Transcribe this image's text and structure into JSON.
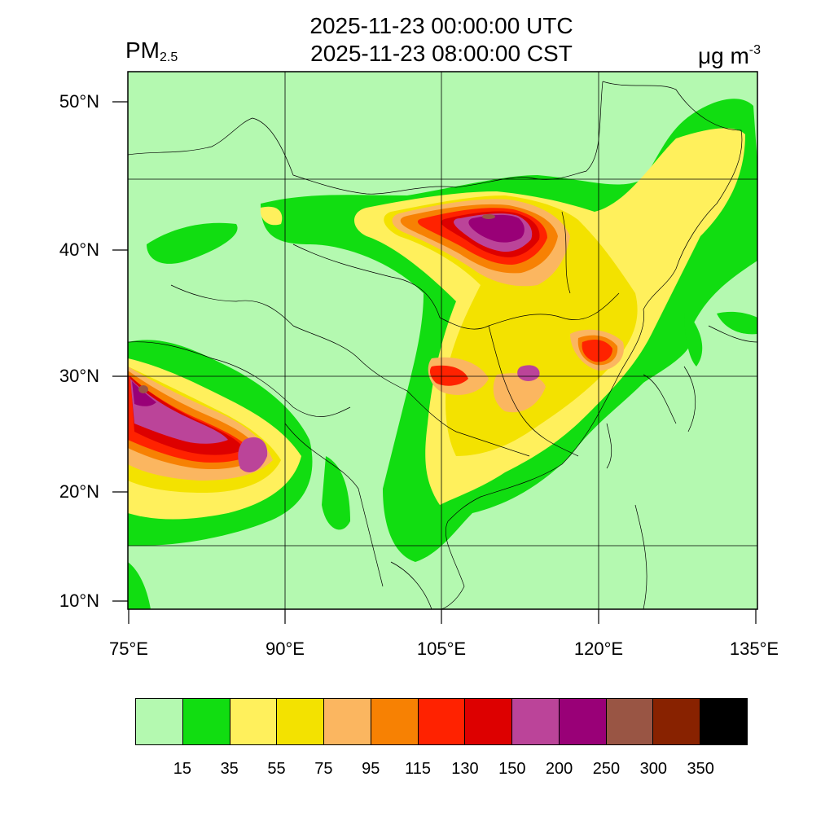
{
  "header": {
    "title_utc": "2025-11-23 00:00:00 UTC",
    "title_cst": "2025-11-23 08:00:00 CST",
    "variable": "PM",
    "variable_subscript": "2.5",
    "units_base": "μg m",
    "units_exponent": "-3"
  },
  "axes": {
    "lat_labels": [
      "50°N",
      "40°N",
      "30°N",
      "20°N",
      "10°N"
    ],
    "lon_labels": [
      "75°E",
      "90°E",
      "105°E",
      "120°E",
      "135°E"
    ],
    "lon_range": [
      75,
      135
    ],
    "lat_range": [
      9,
      52
    ]
  },
  "legend": {
    "labels": [
      "15",
      "35",
      "55",
      "75",
      "95",
      "115",
      "130",
      "150",
      "200",
      "250",
      "300",
      "350"
    ],
    "colors": [
      "#b4f9b0",
      "#11dd11",
      "#fff05c",
      "#f3e200",
      "#fbb660",
      "#f78103",
      "#ff2200",
      "#dd0000",
      "#bb4499",
      "#990077",
      "#995544",
      "#882200",
      "#000000"
    ]
  },
  "colors": {
    "background": "#b4f9b0",
    "border": "#000000"
  }
}
